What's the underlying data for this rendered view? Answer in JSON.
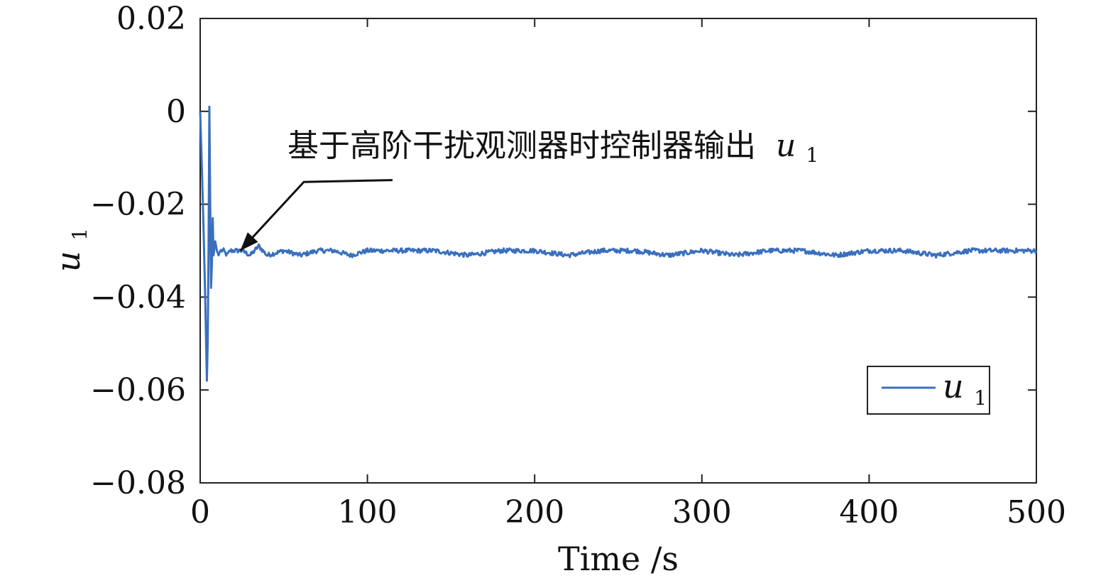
{
  "chart_data": {
    "type": "line",
    "title": "",
    "xlabel": "Time /s",
    "ylabel": "u1",
    "ylabel_base": "u",
    "ylabel_sub": "1",
    "xlim": [
      0,
      500
    ],
    "ylim": [
      -0.08,
      0.02
    ],
    "xticks": [
      0,
      100,
      200,
      300,
      400,
      500
    ],
    "xtick_labels": [
      "0",
      "100",
      "200",
      "300",
      "400",
      "500"
    ],
    "yticks": [
      0.02,
      0,
      -0.02,
      -0.04,
      -0.06,
      -0.08
    ],
    "ytick_labels": [
      "0.02",
      "0",
      "−0.02",
      "−0.04",
      "−0.06",
      "−0.08"
    ],
    "grid": false,
    "legend": {
      "position": "lower-right",
      "entries": [
        {
          "base": "u",
          "sub": "1"
        }
      ]
    },
    "series": [
      {
        "name": "u1",
        "color": "#3a6fbf",
        "x": [
          0,
          1,
          2,
          3,
          4,
          4.5,
          5,
          5.5,
          6,
          6.5,
          7,
          7.5,
          8,
          9,
          10,
          11,
          12,
          14,
          16,
          18,
          20,
          25,
          30,
          35,
          40,
          50,
          60,
          70,
          80,
          90,
          100,
          120,
          140,
          160,
          180,
          200,
          220,
          240,
          260,
          280,
          300,
          320,
          340,
          360,
          380,
          400,
          420,
          440,
          460,
          480,
          500
        ],
        "y": [
          0,
          -0.012,
          -0.025,
          -0.04,
          -0.058,
          -0.05,
          -0.03,
          0.001,
          -0.02,
          -0.038,
          -0.033,
          -0.023,
          -0.031,
          -0.028,
          -0.03,
          -0.031,
          -0.03,
          -0.03,
          -0.031,
          -0.03,
          -0.03,
          -0.03,
          -0.031,
          -0.029,
          -0.031,
          -0.03,
          -0.031,
          -0.03,
          -0.03,
          -0.031,
          -0.03,
          -0.03,
          -0.03,
          -0.031,
          -0.03,
          -0.03,
          -0.031,
          -0.03,
          -0.03,
          -0.031,
          -0.03,
          -0.031,
          -0.03,
          -0.03,
          -0.031,
          -0.03,
          -0.03,
          -0.031,
          -0.03,
          -0.03,
          -0.03
        ],
        "noise_amplitude": 0.0005
      }
    ],
    "annotations": [
      {
        "text": "基于高阶干扰观测器时控制器输出",
        "math_base": "u",
        "math_sub": "1",
        "arrow_from": [
          115,
          -0.0148
        ],
        "arrow_bend": [
          62,
          -0.0152
        ],
        "arrow_to": [
          24,
          -0.03
        ]
      }
    ]
  }
}
